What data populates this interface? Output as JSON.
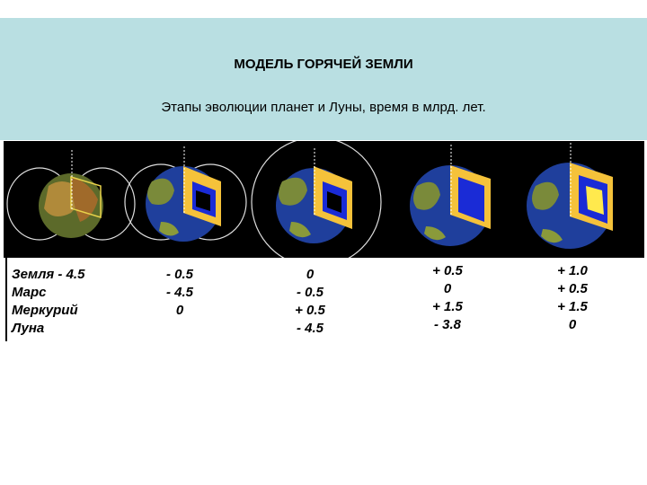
{
  "header": {
    "title": "МОДЕЛЬ ГОРЯЧЕЙ ЗЕМЛИ",
    "subtitle": "Этапы эволюции планет и Луны, время в млрд. лет."
  },
  "colors": {
    "header_bg": "#b9dfe2",
    "figure_bg": "#000000",
    "ocean": "#1f3f9c",
    "land": "#8a9a3a",
    "mantle": "#f5c23a",
    "core": "#1a2bd6",
    "inner_core": "#ffe94d"
  },
  "stages": [
    {
      "core": "none"
    },
    {
      "core": "forming"
    },
    {
      "core": "molten"
    },
    {
      "core": "molten-large"
    },
    {
      "core": "solid-inner"
    }
  ],
  "table": {
    "planets": [
      "Земля - 4.5",
      "Марс",
      "Меркурий",
      "Луна"
    ],
    "columns": [
      [
        "- 0.5",
        "- 4.5",
        "0",
        ""
      ],
      [
        "0",
        "- 0.5",
        "+ 0.5",
        "- 4.5"
      ],
      [
        "+ 0.5",
        "0",
        "+ 1.5",
        "- 3.8"
      ],
      [
        "+ 1.0",
        "+ 0.5",
        "+ 1.5",
        "0"
      ]
    ]
  }
}
